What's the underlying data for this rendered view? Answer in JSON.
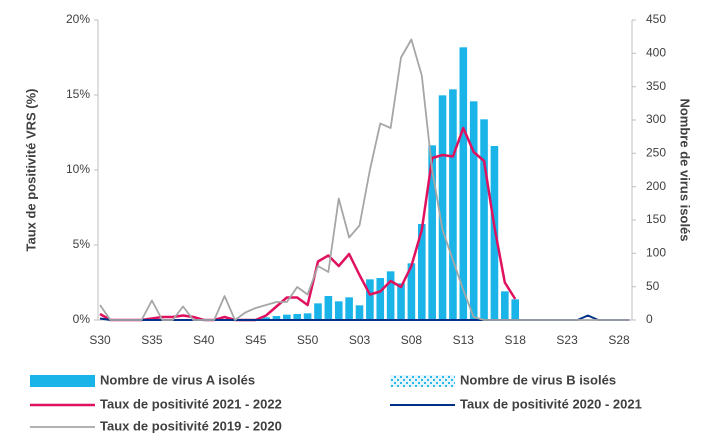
{
  "chart_data": {
    "type": "combo",
    "y_label": "Taux de positivité VRS (%)",
    "y2_label": "Nombre de virus isolés",
    "categories": [
      "S30",
      null,
      null,
      null,
      null,
      "S35",
      null,
      null,
      null,
      null,
      "S40",
      null,
      null,
      null,
      null,
      "S45",
      null,
      null,
      null,
      null,
      "S50",
      null,
      null,
      null,
      null,
      "S03",
      null,
      null,
      null,
      null,
      "S08",
      null,
      null,
      null,
      null,
      "S13",
      null,
      null,
      null,
      null,
      "S18",
      null,
      null,
      null,
      null,
      "S23",
      null,
      null,
      null,
      null,
      "S28",
      null
    ],
    "ylim": [
      0,
      20
    ],
    "yticks": [
      {
        "value": 0,
        "label": "0%"
      },
      {
        "value": 5,
        "label": "5%"
      },
      {
        "value": 10,
        "label": "10%"
      },
      {
        "value": 15,
        "label": "15%"
      },
      {
        "value": 20,
        "label": "20%"
      }
    ],
    "y2lim": [
      0,
      450
    ],
    "y2ticks": [
      0,
      50,
      100,
      150,
      200,
      250,
      300,
      350,
      400,
      450
    ],
    "series": [
      {
        "name": "Nombre de virus A isolés",
        "type": "bar",
        "axis": "y2",
        "color": "#1ab4e8",
        "values": [
          0,
          0,
          0,
          0,
          0,
          0,
          0,
          0,
          0,
          0,
          0,
          0,
          0,
          0,
          0,
          1,
          4,
          6,
          8,
          9,
          10,
          25,
          36,
          28,
          34,
          22,
          61,
          63,
          73,
          55,
          85,
          144,
          262,
          337,
          346,
          409,
          328,
          301,
          261,
          43,
          31,
          0,
          0,
          0,
          0,
          0,
          0,
          0,
          0,
          0,
          0,
          0
        ]
      },
      {
        "name": "Nombre de virus B isolés",
        "type": "bar",
        "axis": "y2",
        "pattern": true,
        "color": "#1ab4e8",
        "values": [
          0,
          0,
          0,
          0,
          0,
          0,
          0,
          0,
          0,
          0,
          0,
          0,
          0,
          0,
          0,
          0,
          0,
          0,
          0,
          0,
          0,
          0,
          0,
          0,
          0,
          0,
          0,
          0,
          0,
          0,
          0,
          0,
          0,
          0,
          0,
          0,
          0,
          0,
          0,
          0,
          0,
          0,
          0,
          0,
          0,
          0,
          0,
          0,
          0,
          0,
          0,
          0
        ]
      },
      {
        "name": "Taux de positivité 2021 - 2022",
        "type": "line",
        "color": "#e0115f",
        "width": 2.5,
        "values": [
          0.4,
          0,
          0,
          0,
          0,
          0.1,
          0.2,
          0.2,
          0.3,
          0.2,
          0,
          0,
          0.2,
          0,
          0,
          0,
          0.3,
          0.9,
          1.5,
          1.5,
          1.0,
          3.9,
          4.3,
          3.6,
          4.4,
          3.0,
          1.7,
          1.9,
          2.6,
          2.2,
          3.6,
          6.0,
          10.8,
          11.0,
          10.9,
          12.8,
          11.2,
          10.6,
          6.2,
          2.5,
          1.4,
          null,
          null,
          null,
          null,
          null,
          null,
          null,
          null,
          null,
          null,
          null
        ]
      },
      {
        "name": "Taux de positivité 2020 - 2021",
        "type": "line",
        "color": "#003087",
        "width": 2,
        "values": [
          0.1,
          0,
          0,
          0,
          0,
          0,
          0,
          0,
          0,
          0,
          0,
          0,
          0,
          0,
          0,
          0,
          0,
          0,
          0,
          0,
          0,
          0,
          0,
          0,
          0,
          0,
          0,
          0,
          0,
          0,
          0,
          0,
          0,
          0,
          0,
          0,
          0,
          0,
          0,
          0,
          0,
          0,
          0,
          0,
          0,
          0,
          0,
          0.3,
          0,
          0,
          0,
          0
        ]
      },
      {
        "name": "Taux de positivité 2019 - 2020",
        "type": "line",
        "color": "#a6a6a6",
        "width": 1.8,
        "values": [
          1.0,
          0,
          0,
          0,
          0,
          1.3,
          0,
          0,
          0.9,
          0,
          0,
          0,
          1.6,
          0,
          0.5,
          0.8,
          1.0,
          1.2,
          1.2,
          2.2,
          1.7,
          3.6,
          3.2,
          8.1,
          5.5,
          6.3,
          10.0,
          13.1,
          12.8,
          17.5,
          18.7,
          16.3,
          10.0,
          6.0,
          4.0,
          2.0,
          0.2,
          0,
          0,
          0,
          0,
          0,
          0,
          0,
          0,
          0,
          0,
          0,
          0,
          0,
          0,
          0
        ]
      }
    ]
  }
}
